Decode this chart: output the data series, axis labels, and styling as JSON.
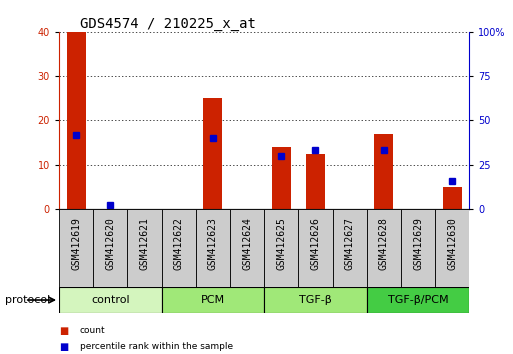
{
  "title": "GDS4574 / 210225_x_at",
  "samples": [
    "GSM412619",
    "GSM412620",
    "GSM412621",
    "GSM412622",
    "GSM412623",
    "GSM412624",
    "GSM412625",
    "GSM412626",
    "GSM412627",
    "GSM412628",
    "GSM412629",
    "GSM412630"
  ],
  "counts": [
    40,
    0,
    0,
    0,
    25,
    0,
    14,
    12.5,
    0,
    17,
    0,
    5
  ],
  "percentile": [
    42,
    2,
    0,
    0,
    40,
    0,
    30,
    33,
    0,
    33,
    0,
    16
  ],
  "groups": [
    {
      "label": "control",
      "start": 0,
      "end": 3,
      "color": "#d4f5be"
    },
    {
      "label": "PCM",
      "start": 3,
      "end": 6,
      "color": "#a0e878"
    },
    {
      "label": "TGF-β",
      "start": 6,
      "end": 9,
      "color": "#a0e878"
    },
    {
      "label": "TGF-β/PCM",
      "start": 9,
      "end": 12,
      "color": "#44cc44"
    }
  ],
  "ylim_left": [
    0,
    40
  ],
  "ylim_right": [
    0,
    100
  ],
  "yticks_left": [
    0,
    10,
    20,
    30,
    40
  ],
  "yticks_right": [
    0,
    25,
    50,
    75,
    100
  ],
  "ytick_labels_right": [
    "0",
    "25",
    "50",
    "75",
    "100%"
  ],
  "bar_color": "#cc2200",
  "percentile_color": "#0000cc",
  "grid_color": "#000000",
  "title_fontsize": 10,
  "tick_fontsize": 7,
  "label_fontsize": 8,
  "protocol_label": "protocol",
  "bg_color": "#ffffff",
  "sample_bg": "#cccccc",
  "group_border": "#000000"
}
